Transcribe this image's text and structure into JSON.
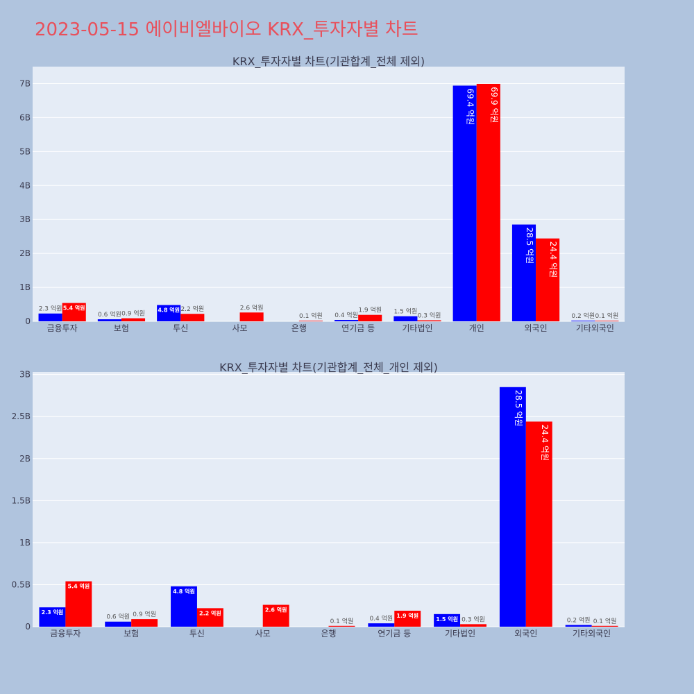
{
  "title": "2023-05-15 에이비엘바이오 KRX_투자자별 차트",
  "colors": {
    "buy": "#0000ff",
    "sell": "#ff0000",
    "plot_bg": "#e5ecf6",
    "page_bg": "#b0c4de",
    "title": "#e8505b"
  },
  "chart_data": [
    {
      "type": "bar",
      "title": "KRX_투자자별 차트(기관합계_전체 제외)",
      "categories": [
        "금융투자",
        "보험",
        "투신",
        "사모",
        "은행",
        "연기금 등",
        "기타법인",
        "개인",
        "외국인",
        "기타외국인"
      ],
      "series": [
        {
          "color": "#0000ff",
          "values": [
            0.23,
            0.06,
            0.48,
            0,
            0,
            0.04,
            0.15,
            6.94,
            2.85,
            0.02
          ],
          "labels": [
            "2.3 억원",
            "0.6 억원",
            "4.8 억원",
            "",
            "",
            "0.4 억원",
            "1.5 억원",
            "69.4 억원",
            "28.5 억원",
            "0.2 억원"
          ]
        },
        {
          "color": "#ff0000",
          "values": [
            0.54,
            0.09,
            0.22,
            0.26,
            0.01,
            0.19,
            0.03,
            6.99,
            2.44,
            0.01
          ],
          "labels": [
            "5.4 억원",
            "0.9 억원",
            "2.2 억원",
            "2.6 억원",
            "0.1 억원",
            "1.9 억원",
            "0.3 억원",
            "69.9 억원",
            "24.4 억원",
            "0.1 억원"
          ]
        }
      ],
      "ylim": [
        0,
        7.5
      ],
      "yticks": [
        0,
        1,
        2,
        3,
        4,
        5,
        6,
        7
      ],
      "ytick_labels": [
        "0",
        "1B",
        "2B",
        "3B",
        "4B",
        "5B",
        "6B",
        "7B"
      ],
      "grid": true
    },
    {
      "type": "bar",
      "title": "KRX_투자자별 차트(기관합계_전체_개인 제외)",
      "categories": [
        "금융투자",
        "보험",
        "투신",
        "사모",
        "은행",
        "연기금 등",
        "기타법인",
        "외국인",
        "기타외국인"
      ],
      "series": [
        {
          "color": "#0000ff",
          "values": [
            0.23,
            0.06,
            0.48,
            0,
            0,
            0.04,
            0.15,
            2.85,
            0.02
          ],
          "labels": [
            "2.3 억원",
            "0.6 억원",
            "4.8 억원",
            "",
            "",
            "0.4 억원",
            "1.5 억원",
            "28.5 억원",
            "0.2 억원"
          ]
        },
        {
          "color": "#ff0000",
          "values": [
            0.54,
            0.09,
            0.22,
            0.26,
            0.01,
            0.19,
            0.03,
            2.44,
            0.01
          ],
          "labels": [
            "5.4 억원",
            "0.9 억원",
            "2.2 억원",
            "2.6 억원",
            "0.1 억원",
            "1.9 억원",
            "0.3 억원",
            "24.4 억원",
            "0.1 억원"
          ]
        }
      ],
      "ylim": [
        0,
        3.03
      ],
      "yticks": [
        0,
        0.5,
        1,
        1.5,
        2,
        2.5,
        3
      ],
      "ytick_labels": [
        "0",
        "0.5B",
        "1B",
        "1.5B",
        "2B",
        "2.5B",
        "3B"
      ],
      "grid": true
    }
  ]
}
